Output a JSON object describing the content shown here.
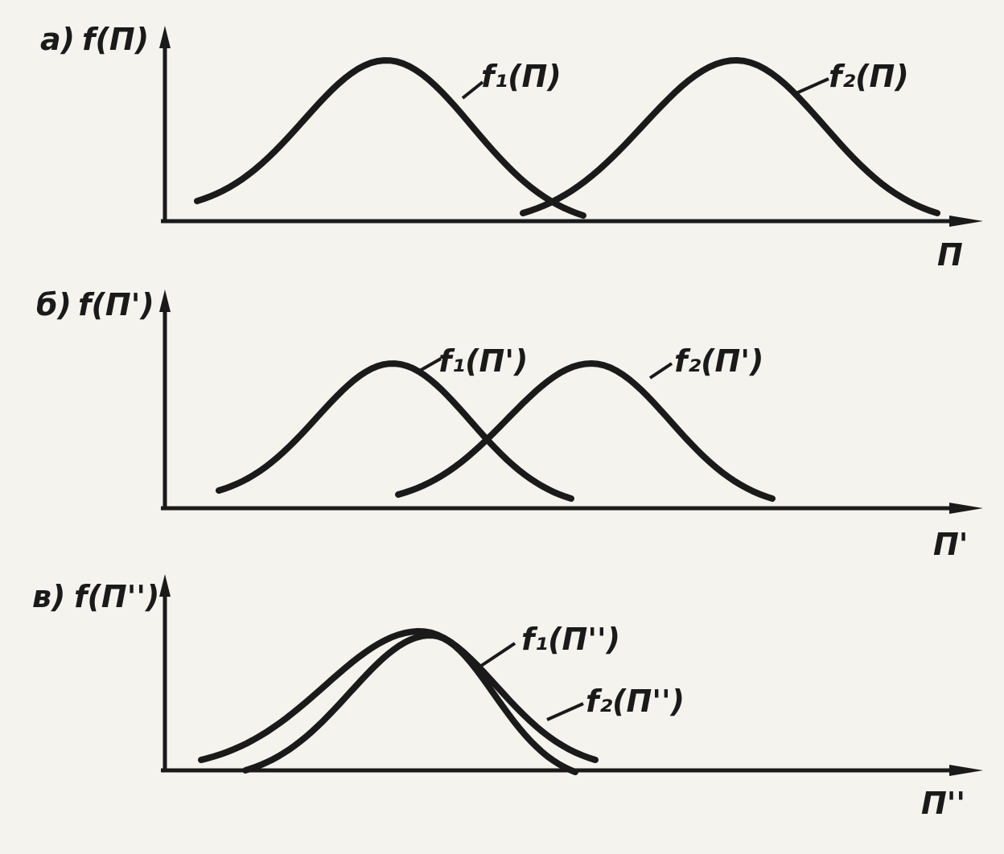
{
  "panels": [
    {
      "label": "а)",
      "y_axis": "f(П)",
      "x_axis": "П",
      "curves": [
        {
          "label": "f₁(П)"
        },
        {
          "label": "f₂(П)"
        }
      ]
    },
    {
      "label": "б)",
      "y_axis": "f(П')",
      "x_axis": "П'",
      "curves": [
        {
          "label": "f₁(П')"
        },
        {
          "label": "f₂(П')"
        }
      ]
    },
    {
      "label": "в)",
      "y_axis": "f(П'')",
      "x_axis": "П''",
      "curves": [
        {
          "label": "f₁(П'')"
        },
        {
          "label": "f₂(П'')"
        }
      ]
    }
  ]
}
